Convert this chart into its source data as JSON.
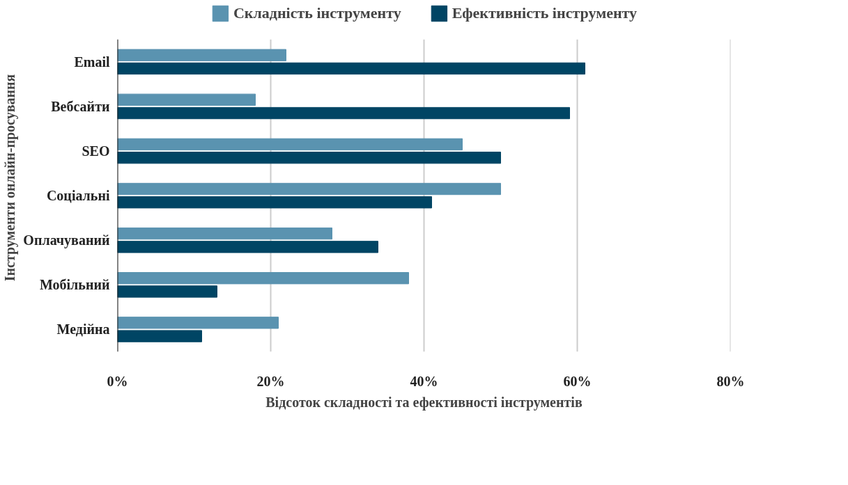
{
  "chart_data": {
    "type": "bar",
    "orientation": "horizontal",
    "xlabel": "Відсоток складності та ефективності інструментів",
    "ylabel": "Інструменти онлайн-просування",
    "categories": [
      "Email",
      "Вебсайти",
      "SEO",
      "Соціальні",
      "Оплачуваний",
      "Мобільний",
      "Медійна"
    ],
    "series": [
      {
        "name": "Складність інструменту",
        "color": "#5a93b0",
        "values": [
          22,
          18,
          45,
          50,
          28,
          38,
          21
        ]
      },
      {
        "name": "Ефективність інструменту",
        "color": "#004564",
        "values": [
          61,
          59,
          50,
          41,
          34,
          13,
          11
        ]
      }
    ],
    "xlim": [
      0,
      80
    ],
    "xticks": [
      {
        "value": 0,
        "label": "0%"
      },
      {
        "value": 20,
        "label": "20%"
      },
      {
        "value": 40,
        "label": "40%"
      },
      {
        "value": 60,
        "label": "60%"
      },
      {
        "value": 80,
        "label": "80%"
      }
    ],
    "grid": "x",
    "legend": "top"
  }
}
